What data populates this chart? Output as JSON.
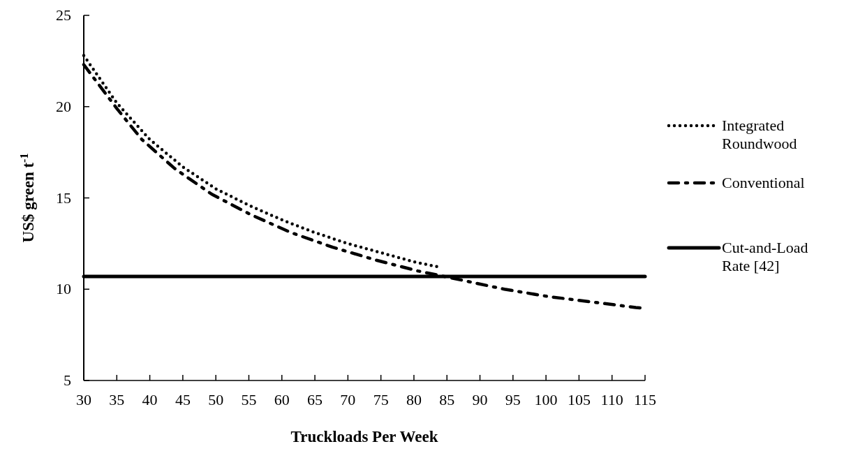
{
  "chart_data": {
    "type": "line",
    "xlabel": "Truckloads Per Week",
    "ylabel": "US$ green t$^{-1}$",
    "xlim": [
      30,
      115
    ],
    "ylim": [
      5,
      25
    ],
    "xticks": [
      30,
      35,
      40,
      45,
      50,
      55,
      60,
      65,
      70,
      75,
      80,
      85,
      90,
      95,
      100,
      105,
      110,
      115
    ],
    "yticks": [
      5,
      10,
      15,
      20,
      25
    ],
    "grid": false,
    "legend": "right",
    "series": [
      {
        "name": "Integrated Roundwood",
        "color": "#000000",
        "line_style": "dotted",
        "x": [
          30,
          35,
          40,
          45,
          50,
          55,
          60,
          65,
          70,
          75,
          80,
          84
        ],
        "values": [
          22.8,
          20.2,
          18.2,
          16.7,
          15.5,
          14.6,
          13.8,
          13.1,
          12.5,
          12.0,
          11.5,
          11.2
        ]
      },
      {
        "name": "Conventional",
        "color": "#000000",
        "line_style": "dashed",
        "x": [
          30,
          35,
          38.8,
          43.8,
          49.4,
          55.2,
          61.4,
          67.7,
          74.2,
          80.6,
          87.2,
          93.7,
          100.3,
          107,
          113.6,
          115
        ],
        "values": [
          22.3,
          19.9,
          18.2,
          16.6,
          15.2,
          14.1,
          13.1,
          12.3,
          11.6,
          11.0,
          10.5,
          10.0,
          9.6,
          9.3,
          9.0,
          8.95
        ]
      },
      {
        "name": "Cut-and-Load Rate [42]",
        "color": "#000000",
        "line_style": "solid",
        "x": [
          30,
          115
        ],
        "values": [
          10.7,
          10.7
        ]
      }
    ]
  }
}
